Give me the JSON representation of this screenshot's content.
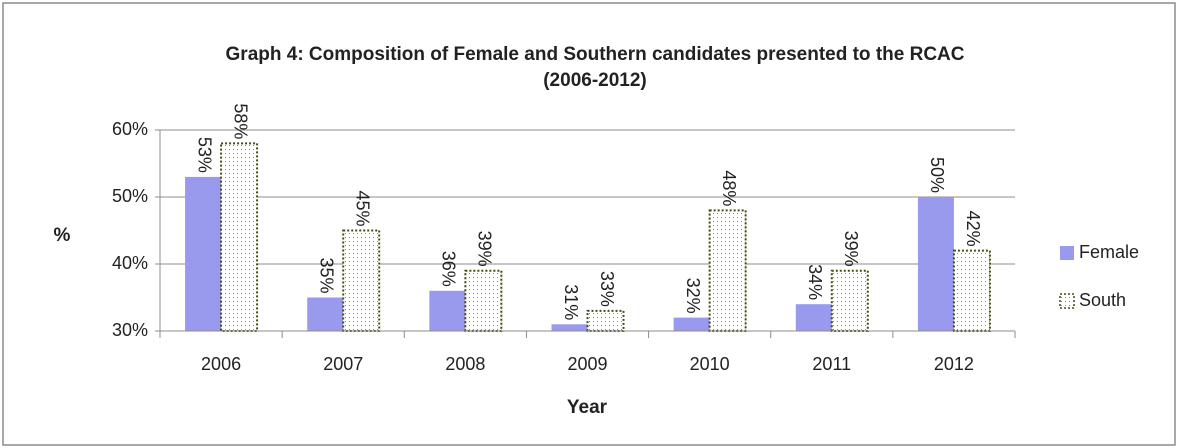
{
  "chart_data": {
    "type": "bar",
    "title": [
      "Graph 4: Composition of Female and Southern candidates presented to the RCAC",
      "(2006-2012)"
    ],
    "xlabel": "Year",
    "ylabel": "%",
    "categories": [
      "2006",
      "2007",
      "2008",
      "2009",
      "2010",
      "2011",
      "2012"
    ],
    "series": [
      {
        "name": "Female",
        "color": "#9999ee",
        "values": [
          53,
          35,
          36,
          31,
          32,
          34,
          50
        ],
        "value_labels": [
          "53%",
          "35%",
          "36%",
          "31%",
          "32%",
          "34%",
          "50%"
        ]
      },
      {
        "name": "South",
        "color": "#4a4a10",
        "values": [
          58,
          45,
          39,
          33,
          48,
          39,
          42
        ],
        "value_labels": [
          "58%",
          "45%",
          "39%",
          "33%",
          "48%",
          "39%",
          "42%"
        ]
      }
    ],
    "ylim": [
      30,
      60
    ],
    "yticks": [
      {
        "value": 30,
        "label": "30%"
      },
      {
        "value": 40,
        "label": "40%"
      },
      {
        "value": 50,
        "label": "50%"
      },
      {
        "value": 60,
        "label": "60%"
      }
    ],
    "grid": true,
    "legend": "right"
  }
}
